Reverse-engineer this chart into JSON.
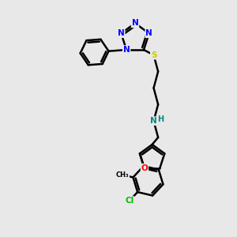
{
  "background_color": "#e8e8e8",
  "bond_color": "#000000",
  "bond_width": 1.8,
  "atom_colors": {
    "N": "#0000ff",
    "O": "#ff0000",
    "S": "#cccc00",
    "Cl": "#00bb00",
    "C": "#000000",
    "H": "#008888"
  },
  "figsize": [
    3.0,
    3.0
  ],
  "dpi": 100,
  "xlim": [
    0,
    10
  ],
  "ylim": [
    0,
    10
  ]
}
